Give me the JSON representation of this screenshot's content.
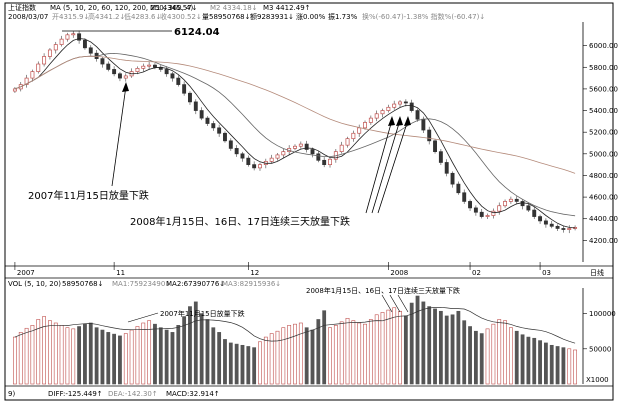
{
  "header": {
    "title": "上证指数",
    "ma_params": "MA (5, 10, 20, 60, 120, 200, 250, 360, 4)",
    "ma1": "M1 4345.57↓",
    "ma_val2": "M2 4334.18↓",
    "ma_val3": "M3 4412.49↑",
    "date": "2008/03/07",
    "open": "开4315.9↓",
    "high": "高4341.2↓",
    "low": "低4283.6↓",
    "close": "收4300.52↓",
    "volume": "量58950768↓",
    "amount": "额9283931↓",
    "change_pct": "涨0.00%",
    "amplitude": "振1.73%",
    "extra": "换%(-60.47)-1.38%  指数%(-60.47)↓"
  },
  "annotations": {
    "peak_value": "6124.04",
    "note_nov": "2007年11月15日放量下跌",
    "note_jan": "2008年1月15日、16日、17日连续三天放量下跌"
  },
  "volume_header": {
    "params": "VOL (5, 10, 20)",
    "vol": "58950768↓",
    "ma1": "MA1:75923490↓",
    "ma2": "MA2:67390776↓",
    "ma3": "MA3:82915936↓"
  },
  "volume_notes": {
    "note_nov": "2007年11月15日放量下跌",
    "note_jan": "2008年1月15日、16日、17日连续三天放量下跌"
  },
  "macd": {
    "label_9": "9)",
    "diff": "DIFF:-125.449↑",
    "dea": "DEA:-142.30↑",
    "macd": "MACD:32.914↑"
  },
  "axis_units": {
    "right_label": "日线",
    "vol_scale": "X1000"
  },
  "chart_data": {
    "type": "candlestick",
    "price_ylim": [
      4000,
      6200
    ],
    "price_ticks": [
      4200,
      4400,
      4600,
      4800,
      5000,
      5200,
      5400,
      5600,
      5800,
      6000
    ],
    "peak": 6124.04,
    "x_ticks": [
      "2007",
      "11",
      "12",
      "2008",
      "02",
      "03"
    ],
    "series": [
      {
        "name": "close",
        "values": [
          5600,
          5640,
          5700,
          5760,
          5830,
          5900,
          5960,
          6010,
          6060,
          6100,
          6110,
          6050,
          5980,
          5930,
          5880,
          5830,
          5780,
          5740,
          5700,
          5720,
          5760,
          5790,
          5810,
          5820,
          5800,
          5780,
          5740,
          5700,
          5640,
          5560,
          5480,
          5400,
          5330,
          5280,
          5240,
          5190,
          5120,
          5050,
          5000,
          4960,
          4900,
          4870,
          4900,
          4930,
          4960,
          4990,
          5020,
          5050,
          5070,
          5090,
          5040,
          5000,
          4940,
          4900,
          4950,
          5020,
          5080,
          5140,
          5190,
          5240,
          5290,
          5330,
          5370,
          5400,
          5430,
          5460,
          5480,
          5470,
          5400,
          5320,
          5220,
          5120,
          5020,
          4920,
          4820,
          4720,
          4640,
          4560,
          4500,
          4460,
          4420,
          4430,
          4470,
          4520,
          4560,
          4580,
          4560,
          4520,
          4480,
          4420,
          4380,
          4350,
          4330,
          4310,
          4300,
          4310,
          4320
        ]
      },
      {
        "name": "volume",
        "values": [
          80,
          88,
          95,
          100,
          110,
          115,
          108,
          104,
          100,
          96,
          94,
          98,
          102,
          104,
          96,
          92,
          88,
          85,
          82,
          86,
          92,
          98,
          104,
          108,
          102,
          96,
          92,
          88,
          100,
          115,
          132,
          140,
          120,
          110,
          96,
          88,
          76,
          70,
          68,
          66,
          64,
          62,
          72,
          80,
          86,
          90,
          96,
          100,
          102,
          104,
          96,
          92,
          110,
          125,
          96,
          100,
          106,
          112,
          108,
          104,
          102,
          110,
          118,
          122,
          126,
          130,
          124,
          116,
          138,
          150,
          140,
          132,
          128,
          124,
          116,
          118,
          124,
          108,
          98,
          90,
          86,
          94,
          102,
          110,
          108,
          96,
          90,
          84,
          80,
          78,
          74,
          70,
          66,
          64,
          62,
          60,
          58
        ]
      }
    ],
    "vol_ticks": [
      50000,
      100000
    ]
  }
}
